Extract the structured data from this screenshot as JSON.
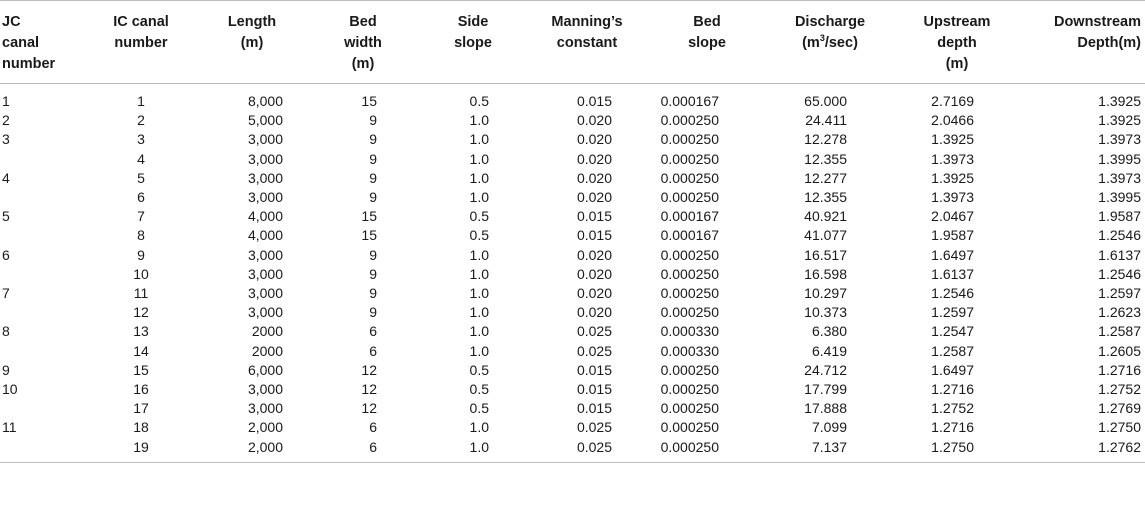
{
  "headers": {
    "jc": [
      "JC",
      "canal",
      "number"
    ],
    "ic": [
      "IC canal",
      "number"
    ],
    "length": [
      "Length",
      "(m)"
    ],
    "bed_width": [
      "Bed",
      "width",
      "(m)"
    ],
    "side_slope": [
      "Side",
      "slope"
    ],
    "manning": [
      "Manning’s",
      "constant"
    ],
    "bed_slope": [
      "Bed",
      "slope"
    ],
    "discharge_main": "Discharge",
    "discharge_unit_pre": "(m",
    "discharge_unit_sup": "3",
    "discharge_unit_post": "/sec)",
    "upstream": [
      "Upstream",
      "depth",
      "(m)"
    ],
    "downstream": [
      "Downstream",
      "Depth(m)"
    ]
  },
  "rows": [
    {
      "jc": "1",
      "ic": "1",
      "length": "8,000",
      "bed_width": "15",
      "side_slope": "0.5",
      "manning": "0.015",
      "bed_slope": "0.000167",
      "discharge": "65.000",
      "upstream": "2.7169",
      "downstream": "1.3925"
    },
    {
      "jc": "2",
      "ic": "2",
      "length": "5,000",
      "bed_width": "9",
      "side_slope": "1.0",
      "manning": "0.020",
      "bed_slope": "0.000250",
      "discharge": "24.411",
      "upstream": "2.0466",
      "downstream": "1.3925"
    },
    {
      "jc": "3",
      "ic": "3",
      "length": "3,000",
      "bed_width": "9",
      "side_slope": "1.0",
      "manning": "0.020",
      "bed_slope": "0.000250",
      "discharge": "12.278",
      "upstream": "1.3925",
      "downstream": "1.3973"
    },
    {
      "jc": "",
      "ic": "4",
      "length": "3,000",
      "bed_width": "9",
      "side_slope": "1.0",
      "manning": "0.020",
      "bed_slope": "0.000250",
      "discharge": "12.355",
      "upstream": "1.3973",
      "downstream": "1.3995"
    },
    {
      "jc": "4",
      "ic": "5",
      "length": "3,000",
      "bed_width": "9",
      "side_slope": "1.0",
      "manning": "0.020",
      "bed_slope": "0.000250",
      "discharge": "12.277",
      "upstream": "1.3925",
      "downstream": "1.3973"
    },
    {
      "jc": "",
      "ic": "6",
      "length": "3,000",
      "bed_width": "9",
      "side_slope": "1.0",
      "manning": "0.020",
      "bed_slope": "0.000250",
      "discharge": "12.355",
      "upstream": "1.3973",
      "downstream": "1.3995"
    },
    {
      "jc": "5",
      "ic": "7",
      "length": "4,000",
      "bed_width": "15",
      "side_slope": "0.5",
      "manning": "0.015",
      "bed_slope": "0.000167",
      "discharge": "40.921",
      "upstream": "2.0467",
      "downstream": "1.9587"
    },
    {
      "jc": "",
      "ic": "8",
      "length": "4,000",
      "bed_width": "15",
      "side_slope": "0.5",
      "manning": "0.015",
      "bed_slope": "0.000167",
      "discharge": "41.077",
      "upstream": "1.9587",
      "downstream": "1.2546"
    },
    {
      "jc": "6",
      "ic": "9",
      "length": "3,000",
      "bed_width": "9",
      "side_slope": "1.0",
      "manning": "0.020",
      "bed_slope": "0.000250",
      "discharge": "16.517",
      "upstream": "1.6497",
      "downstream": "1.6137"
    },
    {
      "jc": "",
      "ic": "10",
      "length": "3,000",
      "bed_width": "9",
      "side_slope": "1.0",
      "manning": "0.020",
      "bed_slope": "0.000250",
      "discharge": "16.598",
      "upstream": "1.6137",
      "downstream": "1.2546"
    },
    {
      "jc": "7",
      "ic": "11",
      "length": "3,000",
      "bed_width": "9",
      "side_slope": "1.0",
      "manning": "0.020",
      "bed_slope": "0.000250",
      "discharge": "10.297",
      "upstream": "1.2546",
      "downstream": "1.2597"
    },
    {
      "jc": "",
      "ic": "12",
      "length": "3,000",
      "bed_width": "9",
      "side_slope": "1.0",
      "manning": "0.020",
      "bed_slope": "0.000250",
      "discharge": "10.373",
      "upstream": "1.2597",
      "downstream": "1.2623"
    },
    {
      "jc": "8",
      "ic": "13",
      "length": "2000",
      "bed_width": "6",
      "side_slope": "1.0",
      "manning": "0.025",
      "bed_slope": "0.000330",
      "discharge": "6.380",
      "upstream": "1.2547",
      "downstream": "1.2587"
    },
    {
      "jc": "",
      "ic": "14",
      "length": "2000",
      "bed_width": "6",
      "side_slope": "1.0",
      "manning": "0.025",
      "bed_slope": "0.000330",
      "discharge": "6.419",
      "upstream": "1.2587",
      "downstream": "1.2605"
    },
    {
      "jc": "9",
      "ic": "15",
      "length": "6,000",
      "bed_width": "12",
      "side_slope": "0.5",
      "manning": "0.015",
      "bed_slope": "0.000250",
      "discharge": "24.712",
      "upstream": "1.6497",
      "downstream": "1.2716"
    },
    {
      "jc": "10",
      "ic": "16",
      "length": "3,000",
      "bed_width": "12",
      "side_slope": "0.5",
      "manning": "0.015",
      "bed_slope": "0.000250",
      "discharge": "17.799",
      "upstream": "1.2716",
      "downstream": "1.2752"
    },
    {
      "jc": "",
      "ic": "17",
      "length": "3,000",
      "bed_width": "12",
      "side_slope": "0.5",
      "manning": "0.015",
      "bed_slope": "0.000250",
      "discharge": "17.888",
      "upstream": "1.2752",
      "downstream": "1.2769"
    },
    {
      "jc": "11",
      "ic": "18",
      "length": "2,000",
      "bed_width": "6",
      "side_slope": "1.0",
      "manning": "0.025",
      "bed_slope": "0.000250",
      "discharge": "7.099",
      "upstream": "1.2716",
      "downstream": "1.2750"
    },
    {
      "jc": "",
      "ic": "19",
      "length": "2,000",
      "bed_width": "6",
      "side_slope": "1.0",
      "manning": "0.025",
      "bed_slope": "0.000250",
      "discharge": "7.137",
      "upstream": "1.2750",
      "downstream": "1.2762"
    }
  ]
}
